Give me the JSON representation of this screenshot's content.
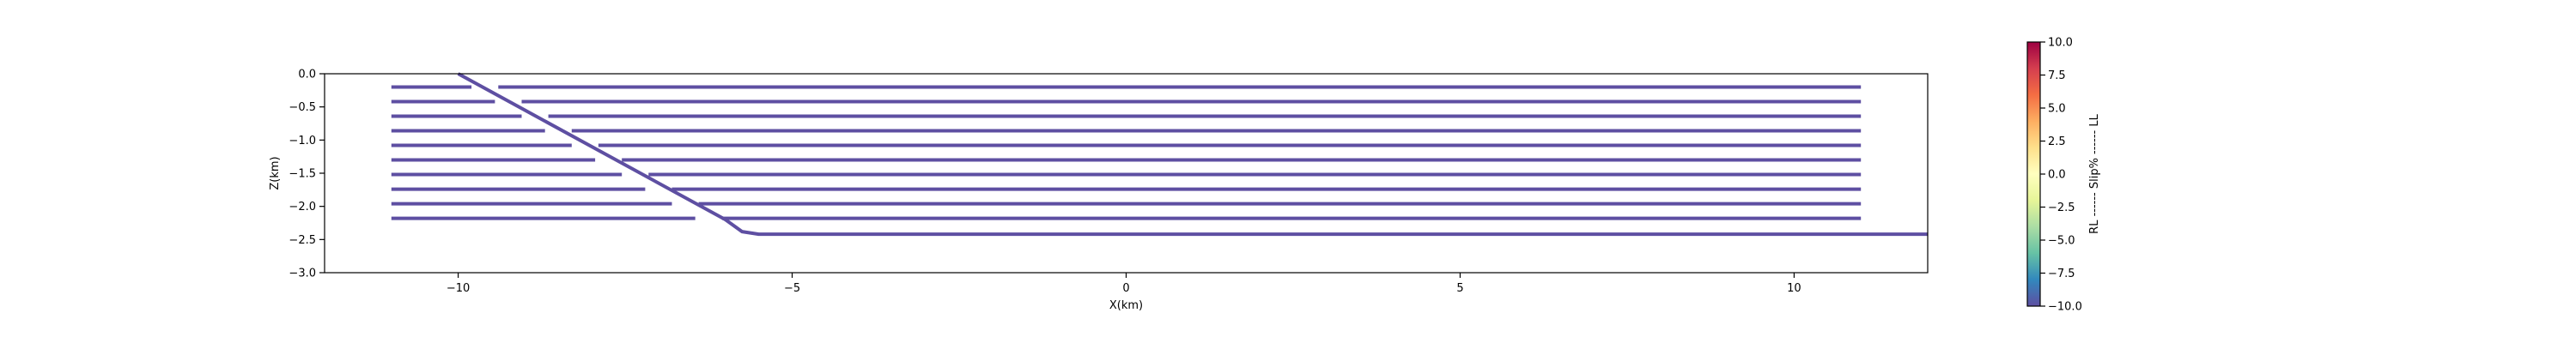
{
  "chart_data": [
    {
      "type": "line",
      "title": "",
      "xlabel": "X(km)",
      "ylabel": "Z(km)",
      "xlim": [
        -12,
        12
      ],
      "ylim": [
        -3.0,
        0.0
      ],
      "xticks": [
        -10,
        -5,
        0,
        5,
        10
      ],
      "xtick_labels": [
        "−10",
        "−5",
        "0",
        "5",
        "10"
      ],
      "yticks": [
        0.0,
        -0.5,
        -1.0,
        -1.5,
        -2.0,
        -2.5,
        -3.0
      ],
      "ytick_labels": [
        "0.0",
        "−0.5",
        "−1.0",
        "−1.5",
        "−2.0",
        "−2.5",
        "−3.0"
      ],
      "grid": false,
      "line_color": "#5e4fa2",
      "series": [
        {
          "x": [
            -10,
            -6,
            -5.75,
            -5.5,
            12
          ],
          "y": [
            0.0,
            -2.2,
            -2.38,
            -2.42,
            -2.42
          ]
        },
        {
          "x": [
            -11,
            -9.8
          ],
          "y": [
            -0.2,
            -0.2
          ]
        },
        {
          "x": [
            -9.4,
            11
          ],
          "y": [
            -0.2,
            -0.2
          ]
        },
        {
          "x": [
            -11,
            -9.45
          ],
          "y": [
            -0.42,
            -0.42
          ]
        },
        {
          "x": [
            -9.05,
            11
          ],
          "y": [
            -0.42,
            -0.42
          ]
        },
        {
          "x": [
            -11,
            -9.05
          ],
          "y": [
            -0.64,
            -0.64
          ]
        },
        {
          "x": [
            -8.65,
            11
          ],
          "y": [
            -0.64,
            -0.64
          ]
        },
        {
          "x": [
            -11,
            -8.7
          ],
          "y": [
            -0.86,
            -0.86
          ]
        },
        {
          "x": [
            -8.3,
            11
          ],
          "y": [
            -0.86,
            -0.86
          ]
        },
        {
          "x": [
            -11,
            -8.3
          ],
          "y": [
            -1.08,
            -1.08
          ]
        },
        {
          "x": [
            -7.9,
            11
          ],
          "y": [
            -1.08,
            -1.08
          ]
        },
        {
          "x": [
            -11,
            -7.95
          ],
          "y": [
            -1.3,
            -1.3
          ]
        },
        {
          "x": [
            -7.55,
            11
          ],
          "y": [
            -1.3,
            -1.3
          ]
        },
        {
          "x": [
            -11,
            -7.55
          ],
          "y": [
            -1.52,
            -1.52
          ]
        },
        {
          "x": [
            -7.15,
            11
          ],
          "y": [
            -1.52,
            -1.52
          ]
        },
        {
          "x": [
            -11,
            -7.2
          ],
          "y": [
            -1.74,
            -1.74
          ]
        },
        {
          "x": [
            -6.8,
            11
          ],
          "y": [
            -1.74,
            -1.74
          ]
        },
        {
          "x": [
            -11,
            -6.8
          ],
          "y": [
            -1.96,
            -1.96
          ]
        },
        {
          "x": [
            -6.4,
            11
          ],
          "y": [
            -1.96,
            -1.96
          ]
        },
        {
          "x": [
            -11,
            -6.45
          ],
          "y": [
            -2.18,
            -2.18
          ]
        },
        {
          "x": [
            -6.05,
            11
          ],
          "y": [
            -2.18,
            -2.18
          ]
        }
      ]
    },
    {
      "type": "heatmap",
      "title": "",
      "label": "RL ------ Slip% ------ LL",
      "colormap": "Spectral_r",
      "vlim": [
        -10.0,
        10.0
      ],
      "ticks": [
        10.0,
        7.5,
        5.0,
        2.5,
        0.0,
        -2.5,
        -5.0,
        -7.5,
        -10.0
      ],
      "tick_labels": [
        "10.0",
        "7.5",
        "5.0",
        "2.5",
        "0.0",
        "−2.5",
        "−5.0",
        "−7.5",
        "−10.0"
      ],
      "colors": [
        "#9e0142",
        "#d53e4f",
        "#f46d43",
        "#fdae61",
        "#fee08b",
        "#ffffbf",
        "#e6f598",
        "#abdda4",
        "#66c2a5",
        "#3288bd",
        "#5e4fa2"
      ]
    }
  ]
}
